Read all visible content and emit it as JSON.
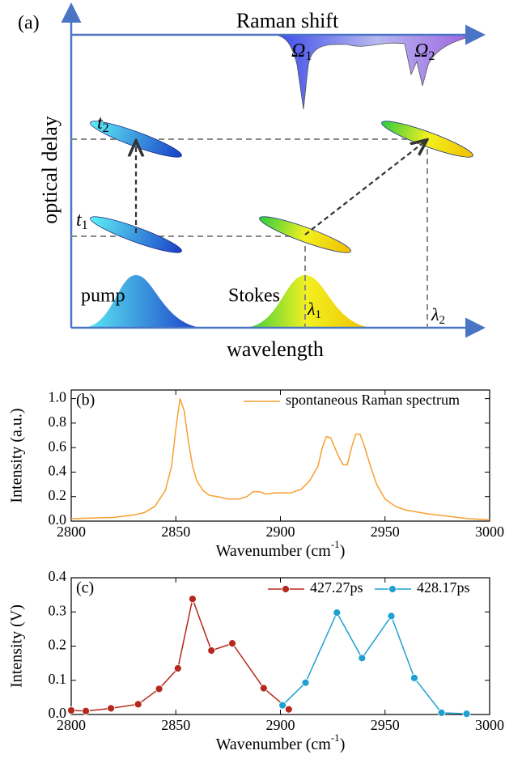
{
  "diagram": {
    "panel_label": "(a)",
    "top_axis_label": "Raman shift",
    "y_axis_label": "optical delay",
    "x_axis_label": "wavelength",
    "pump_label": "pump",
    "stokes_label": "Stokes",
    "omega1": {
      "symbol": "Ω",
      "subscript": "1"
    },
    "omega2": {
      "symbol": "Ω",
      "subscript": "2"
    },
    "t1": {
      "symbol": "t",
      "subscript": "1"
    },
    "t2": {
      "symbol": "t",
      "subscript": "2"
    },
    "lambda1": {
      "symbol": "λ",
      "subscript": "1"
    },
    "lambda2": {
      "symbol": "λ",
      "subscript": "2"
    }
  },
  "chart_data": [
    {
      "type": "line",
      "panel_label": "(b)",
      "x_label": {
        "text": "Wavenumber (cm",
        "superscript": "-1",
        "suffix": ")"
      },
      "y_label": "Intensity (a.u.)",
      "xlim": [
        2800,
        3000
      ],
      "xticks": [
        2800,
        2850,
        2900,
        2950,
        3000
      ],
      "ylim": [
        0,
        1.07
      ],
      "yticks": [
        {
          "value": 0,
          "label": "0.0"
        },
        0.2,
        0.4,
        0.6,
        0.8,
        {
          "value": 1,
          "label": "1.0"
        }
      ],
      "legend": "upper right",
      "markers": false,
      "series": [
        {
          "name": "spontaneous Raman spectrum",
          "color": "#f5a030",
          "x": [
            2800,
            2810,
            2820,
            2830,
            2835,
            2840,
            2845,
            2848,
            2850,
            2852,
            2854,
            2856,
            2858,
            2860,
            2863,
            2866,
            2870,
            2875,
            2880,
            2884,
            2887,
            2890,
            2893,
            2897,
            2900,
            2905,
            2910,
            2914,
            2918,
            2920,
            2922,
            2924,
            2926,
            2928,
            2930,
            2932,
            2934,
            2936,
            2938,
            2940,
            2943,
            2946,
            2950,
            2955,
            2960,
            2970,
            2980,
            2990,
            3000
          ],
          "values": [
            0.02,
            0.025,
            0.03,
            0.05,
            0.07,
            0.12,
            0.25,
            0.45,
            0.75,
            1.0,
            0.9,
            0.65,
            0.45,
            0.33,
            0.25,
            0.21,
            0.2,
            0.18,
            0.18,
            0.2,
            0.24,
            0.24,
            0.22,
            0.23,
            0.23,
            0.23,
            0.26,
            0.33,
            0.45,
            0.6,
            0.69,
            0.68,
            0.6,
            0.52,
            0.46,
            0.46,
            0.6,
            0.71,
            0.71,
            0.62,
            0.45,
            0.3,
            0.18,
            0.12,
            0.09,
            0.06,
            0.04,
            0.02,
            0.01
          ]
        }
      ]
    },
    {
      "type": "line",
      "panel_label": "(c)",
      "x_label": {
        "text": "Wavenumber (cm",
        "superscript": "-1",
        "suffix": ")"
      },
      "y_label": "Intensity (V)",
      "xlim": [
        2800,
        3000
      ],
      "xticks": [
        2800,
        2850,
        2900,
        2950,
        3000
      ],
      "ylim": [
        0,
        0.4
      ],
      "yticks": [
        {
          "value": 0,
          "label": "0.0"
        },
        0.1,
        0.2,
        0.3,
        0.4
      ],
      "legend": "upper right",
      "markers": true,
      "series": [
        {
          "name": "427.27ps",
          "color": "#b5291c",
          "x": [
            2800,
            2807,
            2819,
            2832,
            2842,
            2851,
            2858,
            2867,
            2877,
            2892,
            2904
          ],
          "values": [
            0.012,
            0.01,
            0.018,
            0.03,
            0.075,
            0.135,
            0.338,
            0.187,
            0.208,
            0.077,
            0.015
          ]
        },
        {
          "name": "428.17ps",
          "color": "#1fa0d0",
          "x": [
            2901,
            2912,
            2927,
            2939,
            2953,
            2964,
            2977,
            2989
          ],
          "values": [
            0.027,
            0.093,
            0.298,
            0.165,
            0.288,
            0.107,
            0.005,
            0.002
          ]
        }
      ]
    }
  ]
}
